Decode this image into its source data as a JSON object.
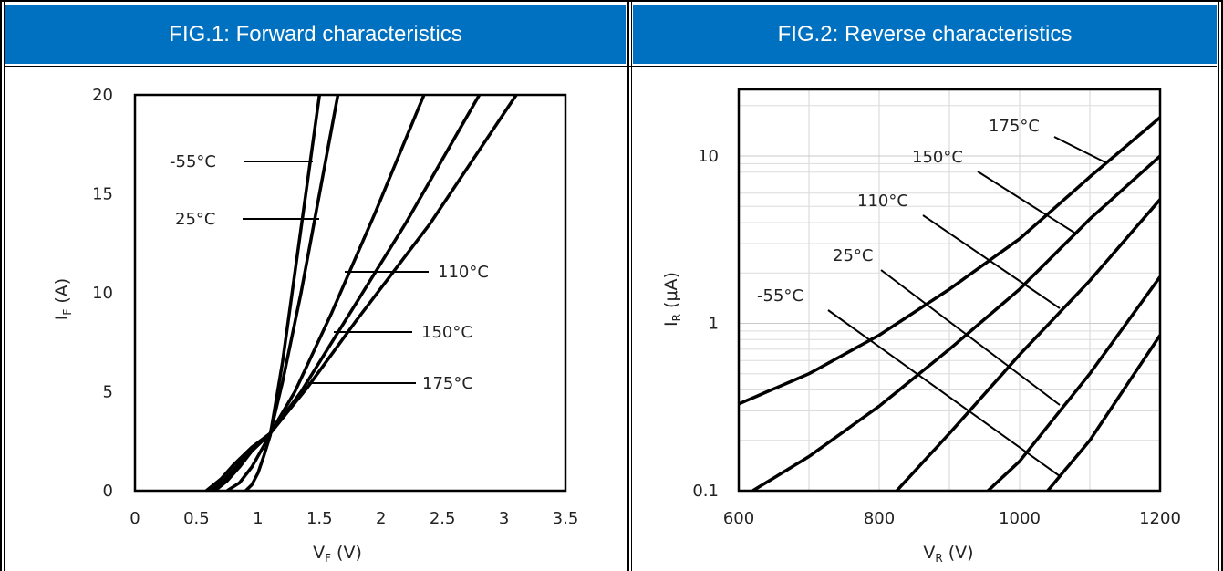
{
  "panels": [
    {
      "title": "FIG.1: Forward characteristics"
    },
    {
      "title": "FIG.2: Reverse characteristics"
    }
  ],
  "chart_data": [
    {
      "type": "line",
      "title": "FIG.1: Forward characteristics",
      "xlabel": "VF (V)",
      "ylabel": "IF (A)",
      "xlim": [
        0,
        3.5
      ],
      "ylim": [
        0,
        20
      ],
      "xticks": [
        "0",
        "0.5",
        "1",
        "1.5",
        "2",
        "2.5",
        "3",
        "3.5"
      ],
      "yticks": [
        "0",
        "5",
        "10",
        "15",
        "20"
      ],
      "grid": false,
      "series": [
        {
          "name": "-55°C",
          "x": [
            0.9,
            0.95,
            1.0,
            1.05,
            1.1,
            1.2,
            1.3,
            1.4,
            1.5
          ],
          "y": [
            0,
            0.3,
            0.9,
            1.8,
            2.8,
            6.5,
            11.0,
            15.5,
            20
          ]
        },
        {
          "name": "25°C",
          "x": [
            0.75,
            0.85,
            0.95,
            1.05,
            1.1,
            1.2,
            1.35,
            1.5,
            1.65
          ],
          "y": [
            0,
            0.4,
            1.2,
            2.3,
            2.9,
            5.5,
            10.0,
            15.0,
            20
          ]
        },
        {
          "name": "110°C",
          "x": [
            0.65,
            0.75,
            0.85,
            0.95,
            1.1,
            1.3,
            1.6,
            1.95,
            2.35
          ],
          "y": [
            0,
            0.5,
            1.2,
            2.0,
            2.9,
            5.0,
            9.0,
            14.0,
            20
          ]
        },
        {
          "name": "150°C",
          "x": [
            0.62,
            0.72,
            0.82,
            0.95,
            1.1,
            1.35,
            1.7,
            2.2,
            2.8
          ],
          "y": [
            0,
            0.5,
            1.2,
            2.1,
            2.9,
            5.0,
            8.5,
            13.5,
            20
          ]
        },
        {
          "name": "175°C",
          "x": [
            0.58,
            0.7,
            0.8,
            0.95,
            1.1,
            1.4,
            1.8,
            2.4,
            3.1
          ],
          "y": [
            0,
            0.6,
            1.3,
            2.2,
            2.9,
            5.2,
            8.6,
            13.5,
            20
          ]
        }
      ]
    },
    {
      "type": "line",
      "title": "FIG.2: Reverse characteristics",
      "xlabel": "VR (V)",
      "ylabel": "IR (μA)",
      "xlim": [
        600,
        1200
      ],
      "ylim": [
        0.1,
        25
      ],
      "yscale": "log",
      "xticks": [
        "600",
        "800",
        "1000",
        "1200"
      ],
      "yticks": [
        "0.1",
        "1",
        "10"
      ],
      "grid": true,
      "series": [
        {
          "name": "175°C",
          "x": [
            600,
            700,
            800,
            900,
            1000,
            1100,
            1200
          ],
          "y": [
            0.33,
            0.5,
            0.85,
            1.6,
            3.2,
            7.5,
            17
          ]
        },
        {
          "name": "150°C",
          "x": [
            620,
            700,
            800,
            900,
            1000,
            1100,
            1200
          ],
          "y": [
            0.1,
            0.16,
            0.32,
            0.7,
            1.6,
            4.2,
            10
          ]
        },
        {
          "name": "110°C",
          "x": [
            825,
            900,
            1000,
            1100,
            1200
          ],
          "y": [
            0.1,
            0.22,
            0.65,
            1.8,
            5.5
          ]
        },
        {
          "name": "25°C",
          "x": [
            955,
            1000,
            1100,
            1200
          ],
          "y": [
            0.1,
            0.15,
            0.5,
            1.9
          ]
        },
        {
          "name": "-55°C",
          "x": [
            1040,
            1100,
            1200
          ],
          "y": [
            0.1,
            0.2,
            0.85
          ]
        }
      ]
    }
  ],
  "axis_text": {
    "fig1_x_main": "V",
    "fig1_x_sub": "F",
    "fig1_x_unit": " (V)",
    "fig1_y_main": "I",
    "fig1_y_sub": "F",
    "fig1_y_unit": " (A)",
    "fig2_x_main": "V",
    "fig2_x_sub": "R",
    "fig2_x_unit": " (V)",
    "fig2_y_main": "I",
    "fig2_y_sub": "R",
    "fig2_y_unit": " (μA)"
  },
  "colors": {
    "header_bg": "#0070c0",
    "header_text": "#ffffff",
    "line": "#000000"
  }
}
